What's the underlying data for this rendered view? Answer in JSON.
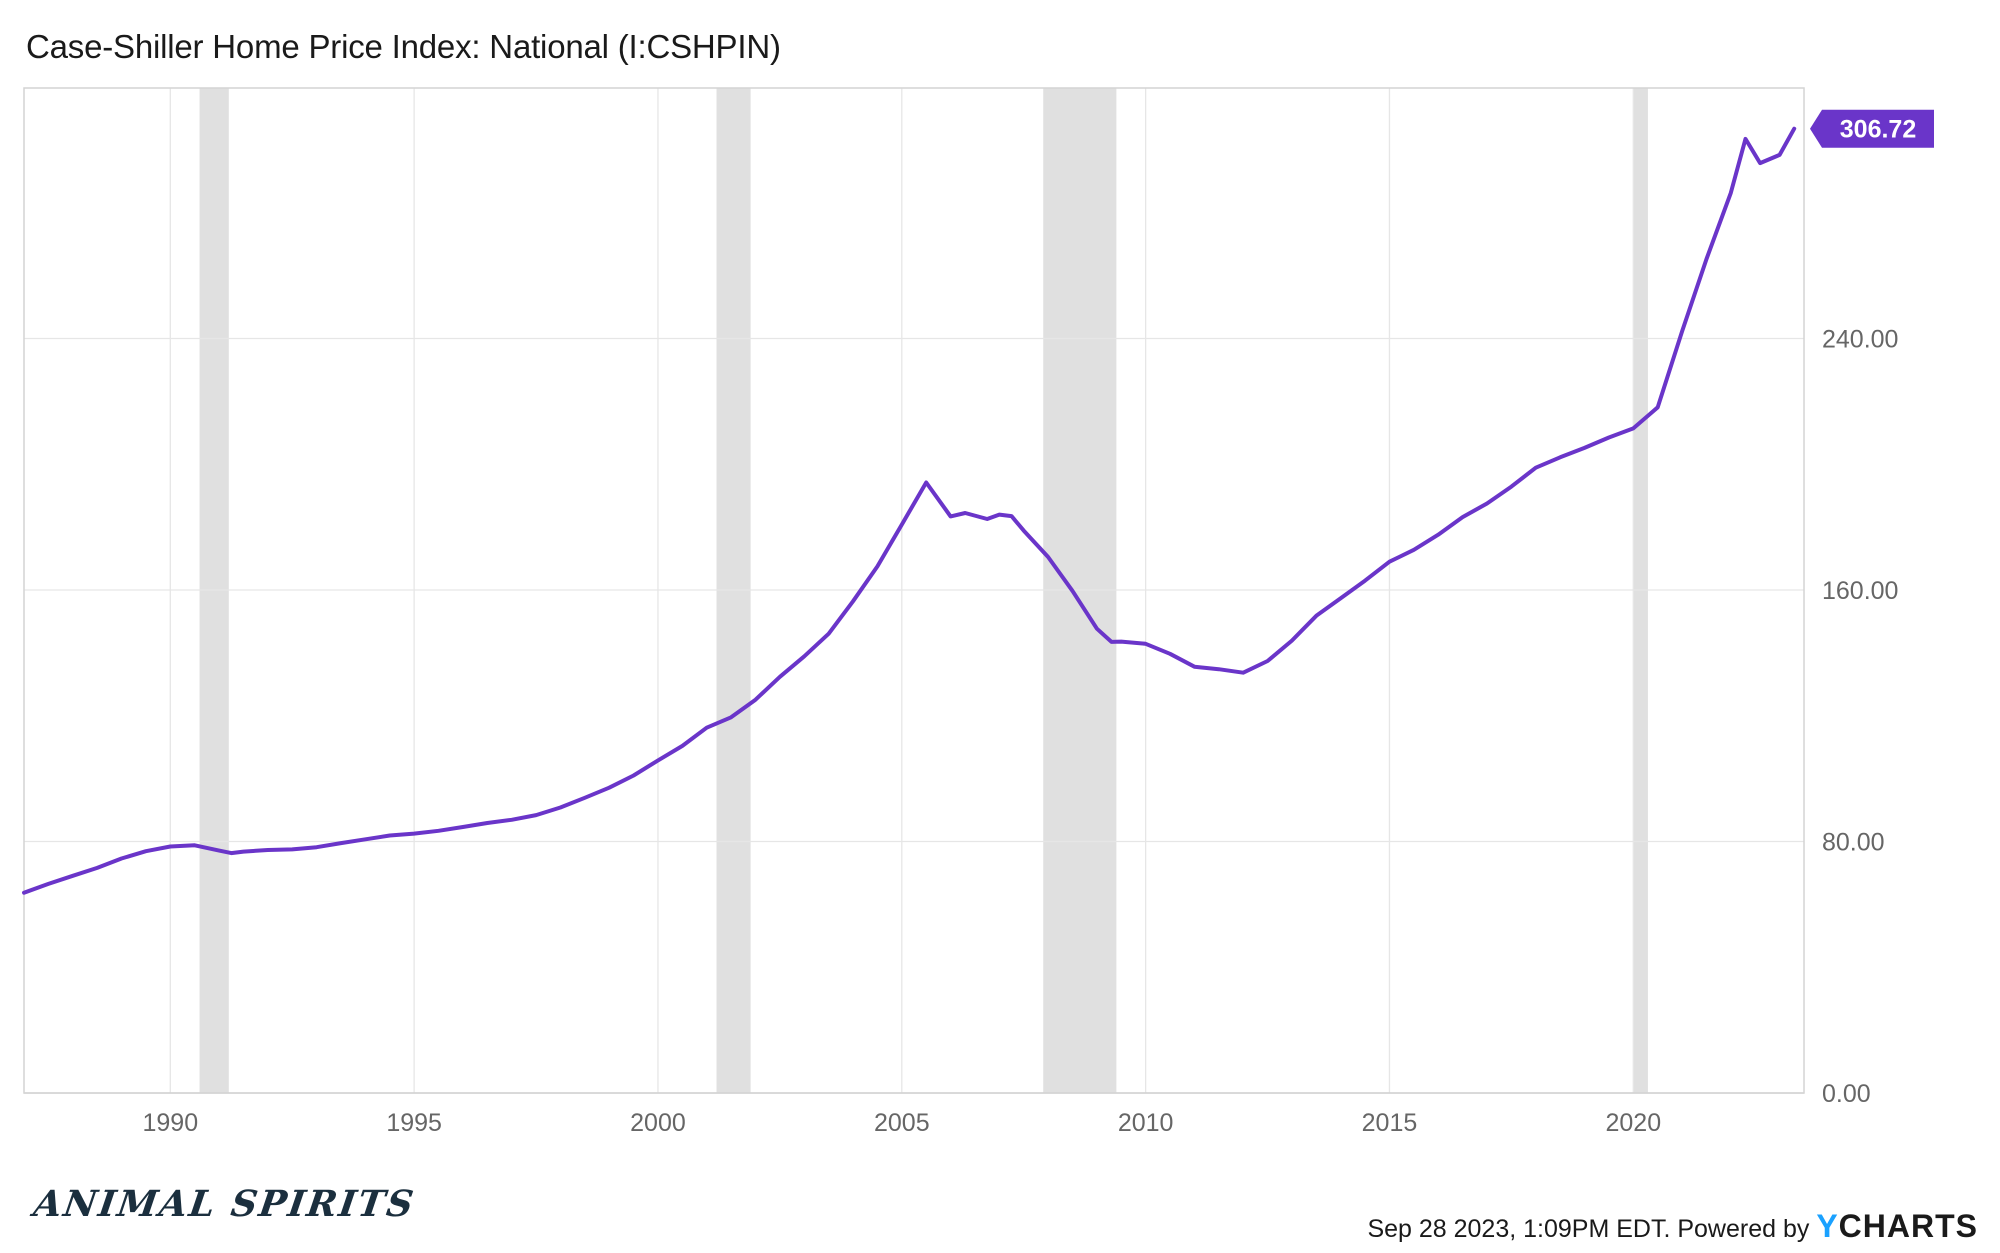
{
  "header": {
    "title": "Case-Shiller Home Price Index: National (I:CSHPIN)"
  },
  "footer": {
    "brand": "ANIMAL SPIRITS",
    "credit": "Sep 28 2023, 1:09PM EDT. Powered by ",
    "provider_y": "Y",
    "provider_rest": "CHARTS"
  },
  "colors": {
    "line": "#6a35c9",
    "recession": "#e0e0e0",
    "grid": "#e6e6e6",
    "axis_text": "#666666",
    "badge_text": "#ffffff"
  },
  "chart_data": {
    "type": "line",
    "title": "Case-Shiller Home Price Index: National (I:CSHPIN)",
    "xlabel": "",
    "ylabel": "",
    "xlim": [
      1987.0,
      2023.5
    ],
    "ylim": [
      0,
      320
    ],
    "x_ticks": [
      1990,
      1995,
      2000,
      2005,
      2010,
      2015,
      2020
    ],
    "x_tick_labels": [
      "1990",
      "1995",
      "2000",
      "2005",
      "2010",
      "2015",
      "2020"
    ],
    "y_ticks": [
      0,
      80,
      160,
      240
    ],
    "y_tick_labels": [
      "0.00",
      "80.00",
      "160.00",
      "240.00"
    ],
    "grid": true,
    "last_value_label": "306.72",
    "recessions": [
      [
        1990.6,
        1991.2
      ],
      [
        2001.2,
        2001.9
      ],
      [
        2007.9,
        2009.4
      ],
      [
        2020.0,
        2020.3
      ]
    ],
    "series": [
      {
        "x": [
          1987.0,
          1987.5,
          1988.0,
          1988.5,
          1989.0,
          1989.5,
          1990.0,
          1990.5,
          1991.0,
          1991.25,
          1991.5,
          1992.0,
          1992.5,
          1993.0,
          1993.5,
          1994.0,
          1994.5,
          1995.0,
          1995.5,
          1996.0,
          1996.5,
          1997.0,
          1997.5,
          1998.0,
          1998.5,
          1999.0,
          1999.5,
          2000.0,
          2000.5,
          2001.0,
          2001.5,
          2002.0,
          2002.5,
          2003.0,
          2003.5,
          2004.0,
          2004.5,
          2005.0,
          2005.5,
          2006.0,
          2006.3,
          2006.75,
          2007.0,
          2007.25,
          2007.5,
          2008.0,
          2008.5,
          2009.0,
          2009.3,
          2009.5,
          2010.0,
          2010.5,
          2011.0,
          2011.5,
          2012.0,
          2012.5,
          2013.0,
          2013.5,
          2014.0,
          2014.5,
          2015.0,
          2015.5,
          2016.0,
          2016.5,
          2017.0,
          2017.5,
          2018.0,
          2018.5,
          2019.0,
          2019.5,
          2020.0,
          2020.5,
          2021.0,
          2021.5,
          2022.0,
          2022.3,
          2022.6,
          2023.0,
          2023.3
        ],
        "y": [
          63.7,
          66.5,
          69.1,
          71.6,
          74.6,
          76.9,
          78.4,
          78.8,
          77.1,
          76.3,
          76.8,
          77.3,
          77.5,
          78.2,
          79.5,
          80.7,
          81.9,
          82.5,
          83.4,
          84.6,
          85.9,
          86.9,
          88.4,
          90.8,
          93.9,
          97.1,
          101.0,
          105.8,
          110.4,
          116.2,
          119.5,
          125.1,
          132.4,
          138.9,
          146.1,
          156.4,
          167.5,
          180.8,
          194.2,
          183.4,
          184.5,
          182.6,
          184.0,
          183.5,
          178.9,
          170.5,
          159.7,
          147.7,
          143.5,
          143.6,
          142.9,
          139.7,
          135.6,
          134.8,
          133.7,
          137.4,
          143.9,
          151.8,
          157.4,
          163.0,
          169.0,
          172.8,
          177.6,
          183.2,
          187.5,
          192.9,
          198.9,
          202.2,
          205.2,
          208.5,
          211.4,
          218.1,
          242.3,
          265.3,
          286.3,
          303.5,
          295.8,
          298.4,
          306.72
        ]
      }
    ]
  }
}
